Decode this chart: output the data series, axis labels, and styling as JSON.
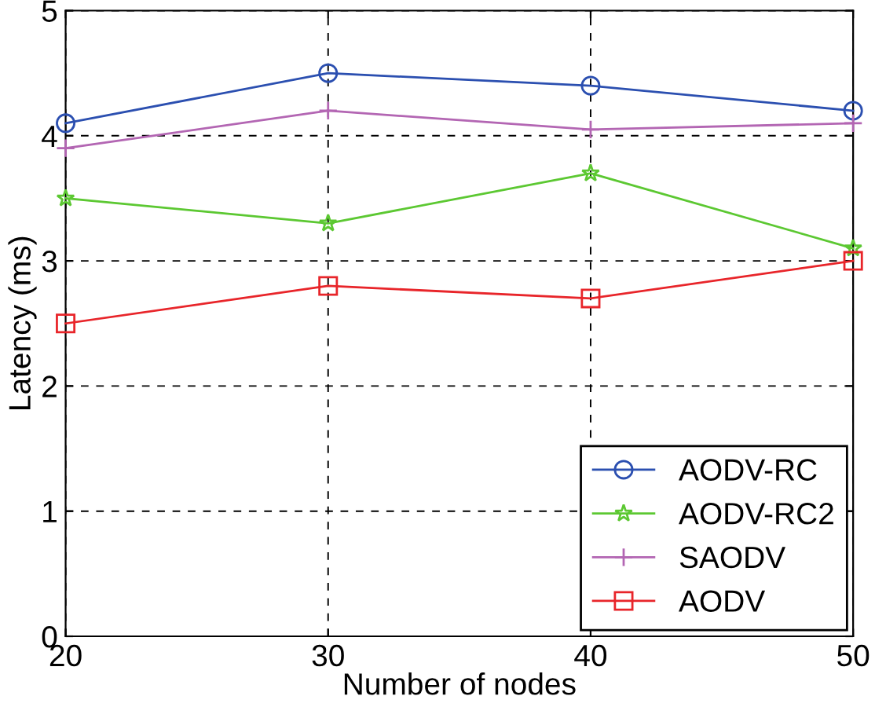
{
  "chart_data": {
    "type": "line",
    "xlabel": "Number of nodes",
    "ylabel": "Latency (ms)",
    "x": [
      20,
      30,
      40,
      50
    ],
    "series": [
      {
        "name": "AODV-RC",
        "color": "#2b4fb0",
        "marker": "circle",
        "values": [
          4.1,
          4.5,
          4.4,
          4.2
        ]
      },
      {
        "name": "AODV-RC2",
        "color": "#5cc832",
        "marker": "star",
        "values": [
          3.5,
          3.3,
          3.7,
          3.1
        ]
      },
      {
        "name": "SAODV",
        "color": "#b366b3",
        "marker": "cross",
        "values": [
          3.9,
          4.2,
          4.05,
          4.1
        ]
      },
      {
        "name": "AODV",
        "color": "#e8252a",
        "marker": "square",
        "values": [
          2.5,
          2.8,
          2.7,
          3.0
        ]
      }
    ],
    "xlim": [
      20,
      50
    ],
    "xticks": [
      20,
      30,
      40,
      50
    ],
    "ylim": [
      0,
      5
    ],
    "yticks": [
      0,
      1,
      2,
      3,
      4,
      5
    ],
    "grid": true,
    "legend": "bottom right",
    "line_style": "solid"
  }
}
